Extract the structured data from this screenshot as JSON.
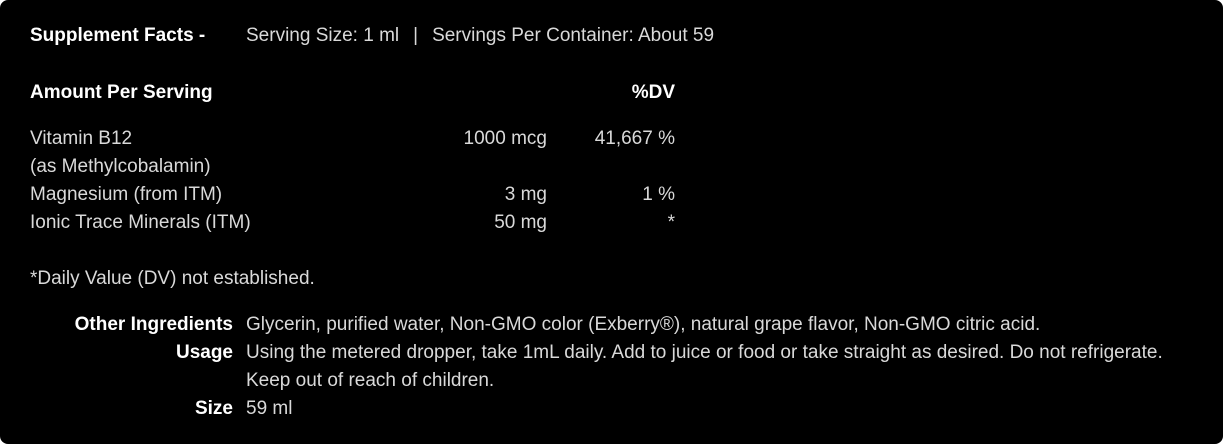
{
  "colors": {
    "background": "#000000",
    "text": "#d9d9d9",
    "bold_text": "#ffffff"
  },
  "header": {
    "title": "Supplement Facts -",
    "serving_size": "Serving Size: 1 ml",
    "separator": "|",
    "servings_per_container": "Servings Per Container: About 59"
  },
  "table": {
    "amount_header": "Amount Per Serving",
    "dv_header": "%DV",
    "rows": [
      {
        "name": "Vitamin B12",
        "sub": "(as Methylcobalamin)",
        "amount": "1000 mcg",
        "dv": "41,667 %"
      },
      {
        "name": "Magnesium (from ITM)",
        "amount": "3 mg",
        "dv": "1 %"
      },
      {
        "name": "Ionic Trace Minerals (ITM)",
        "amount": "50 mg",
        "dv": "*"
      }
    ],
    "footnote": "*Daily Value (DV) not established."
  },
  "details": [
    {
      "label": "Other Ingredients",
      "value": "Glycerin, purified water, Non-GMO color (Exberry®), natural grape flavor, Non-GMO citric acid."
    },
    {
      "label": "Usage",
      "value": "Using the metered dropper, take 1mL daily. Add to juice or food or take straight as desired. Do not refrigerate. Keep out of reach of children."
    },
    {
      "label": "Size",
      "value": "59 ml"
    }
  ]
}
